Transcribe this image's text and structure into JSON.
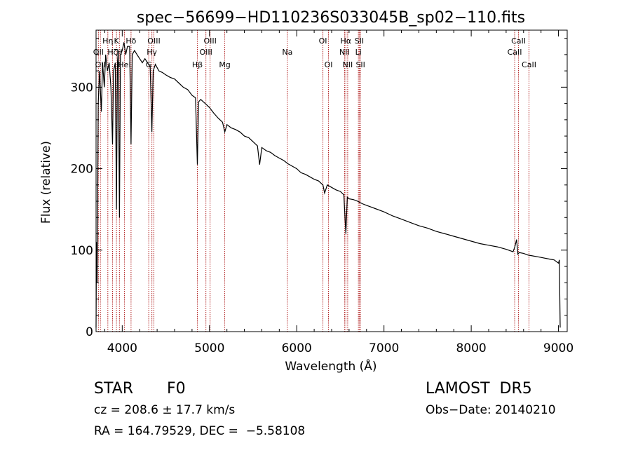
{
  "chart_data": {
    "type": "line",
    "title": "spec−56699−HD110236S033045B_sp02−110.fits",
    "xlabel": "Wavelength (Å)",
    "ylabel": "Flux (relative)",
    "xlim": [
      3700,
      9100
    ],
    "ylim": [
      0,
      370
    ],
    "x_ticks": [
      4000,
      5000,
      6000,
      7000,
      8000,
      9000
    ],
    "y_ticks": [
      0,
      100,
      200,
      300
    ],
    "grid": false,
    "series": [
      {
        "points": [
          [
            3700,
            5
          ],
          [
            3705,
            110
          ],
          [
            3712,
            60
          ],
          [
            3725,
            280
          ],
          [
            3740,
            320
          ],
          [
            3760,
            270
          ],
          [
            3775,
            330
          ],
          [
            3795,
            300
          ],
          [
            3810,
            340
          ],
          [
            3830,
            320
          ],
          [
            3850,
            330
          ],
          [
            3870,
            300
          ],
          [
            3889,
            230
          ],
          [
            3900,
            320
          ],
          [
            3920,
            330
          ],
          [
            3934,
            150
          ],
          [
            3945,
            330
          ],
          [
            3955,
            345
          ],
          [
            3968,
            140
          ],
          [
            3980,
            340
          ],
          [
            4000,
            345
          ],
          [
            4020,
            355
          ],
          [
            4040,
            340
          ],
          [
            4060,
            350
          ],
          [
            4085,
            350
          ],
          [
            4101,
            230
          ],
          [
            4115,
            340
          ],
          [
            4140,
            345
          ],
          [
            4170,
            340
          ],
          [
            4200,
            335
          ],
          [
            4230,
            330
          ],
          [
            4260,
            335
          ],
          [
            4290,
            330
          ],
          [
            4320,
            325
          ],
          [
            4340,
            245
          ],
          [
            4355,
            320
          ],
          [
            4380,
            328
          ],
          [
            4420,
            320
          ],
          [
            4460,
            318
          ],
          [
            4500,
            315
          ],
          [
            4550,
            312
          ],
          [
            4600,
            310
          ],
          [
            4650,
            305
          ],
          [
            4700,
            300
          ],
          [
            4750,
            297
          ],
          [
            4800,
            290
          ],
          [
            4840,
            287
          ],
          [
            4861,
            205
          ],
          [
            4875,
            282
          ],
          [
            4900,
            285
          ],
          [
            4950,
            280
          ],
          [
            5000,
            275
          ],
          [
            5050,
            268
          ],
          [
            5100,
            262
          ],
          [
            5150,
            257
          ],
          [
            5175,
            245
          ],
          [
            5200,
            254
          ],
          [
            5250,
            250
          ],
          [
            5300,
            248
          ],
          [
            5350,
            245
          ],
          [
            5400,
            240
          ],
          [
            5450,
            238
          ],
          [
            5500,
            233
          ],
          [
            5550,
            228
          ],
          [
            5575,
            205
          ],
          [
            5600,
            226
          ],
          [
            5650,
            222
          ],
          [
            5700,
            220
          ],
          [
            5750,
            216
          ],
          [
            5800,
            213
          ],
          [
            5850,
            210
          ],
          [
            5900,
            206
          ],
          [
            5950,
            203
          ],
          [
            6000,
            200
          ],
          [
            6050,
            195
          ],
          [
            6100,
            193
          ],
          [
            6150,
            190
          ],
          [
            6200,
            187
          ],
          [
            6250,
            185
          ],
          [
            6300,
            180
          ],
          [
            6320,
            170
          ],
          [
            6350,
            180
          ],
          [
            6400,
            177
          ],
          [
            6450,
            174
          ],
          [
            6500,
            172
          ],
          [
            6540,
            168
          ],
          [
            6563,
            120
          ],
          [
            6580,
            165
          ],
          [
            6600,
            163
          ],
          [
            6650,
            162
          ],
          [
            6700,
            160
          ],
          [
            6750,
            157
          ],
          [
            6800,
            155
          ],
          [
            6850,
            153
          ],
          [
            6900,
            151
          ],
          [
            6950,
            149
          ],
          [
            7000,
            147
          ],
          [
            7100,
            142
          ],
          [
            7200,
            138
          ],
          [
            7300,
            134
          ],
          [
            7400,
            130
          ],
          [
            7500,
            127
          ],
          [
            7600,
            123
          ],
          [
            7700,
            120
          ],
          [
            7800,
            117
          ],
          [
            7900,
            114
          ],
          [
            8000,
            111
          ],
          [
            8100,
            108
          ],
          [
            8200,
            106
          ],
          [
            8300,
            104
          ],
          [
            8400,
            101
          ],
          [
            8480,
            98
          ],
          [
            8500,
            104
          ],
          [
            8520,
            113
          ],
          [
            8535,
            95
          ],
          [
            8550,
            97
          ],
          [
            8600,
            96
          ],
          [
            8650,
            94
          ],
          [
            8700,
            93
          ],
          [
            8800,
            91
          ],
          [
            8900,
            89
          ],
          [
            8950,
            88
          ],
          [
            9000,
            84
          ],
          [
            9010,
            88
          ],
          [
            9020,
            5
          ]
        ]
      }
    ],
    "lines": [
      {
        "x": 3727,
        "label": "OII",
        "row": 2
      },
      {
        "x": 3750,
        "label": "OII",
        "row": 3
      },
      {
        "x": 3835,
        "label": "Hη",
        "row": 1
      },
      {
        "x": 3889,
        "label": "Hζ",
        "row": 2
      },
      {
        "x": 3934,
        "label": "K",
        "row": 1
      },
      {
        "x": 3968,
        "label": "H",
        "row": 2
      },
      {
        "x": 4026,
        "label": "HeI",
        "row": 3
      },
      {
        "x": 4101,
        "label": "Hδ",
        "row": 1
      },
      {
        "x": 4304,
        "label": "G",
        "row": 3
      },
      {
        "x": 4340,
        "label": "Hγ",
        "row": 2
      },
      {
        "x": 4363,
        "label": "OIII",
        "row": 1
      },
      {
        "x": 4861,
        "label": "Hβ",
        "row": 3
      },
      {
        "x": 4959,
        "label": "OIII",
        "row": 2
      },
      {
        "x": 5007,
        "label": "OIII",
        "row": 1
      },
      {
        "x": 5175,
        "label": "Mg",
        "row": 3
      },
      {
        "x": 5893,
        "label": "Na",
        "row": 2
      },
      {
        "x": 6300,
        "label": "OI",
        "row": 1
      },
      {
        "x": 6364,
        "label": "OI",
        "row": 3
      },
      {
        "x": 6548,
        "label": "NII",
        "row": 2
      },
      {
        "x": 6563,
        "label": "Hα",
        "row": 1
      },
      {
        "x": 6584,
        "label": "NII",
        "row": 3
      },
      {
        "x": 6707,
        "label": "Li",
        "row": 2
      },
      {
        "x": 6717,
        "label": "SII",
        "row": 1
      },
      {
        "x": 6731,
        "label": "SII",
        "row": 3
      },
      {
        "x": 8498,
        "label": "CaII",
        "row": 2
      },
      {
        "x": 8542,
        "label": "CaII",
        "row": 1
      },
      {
        "x": 8662,
        "label": "CaII",
        "row": 3
      }
    ],
    "line_color": "#b22222",
    "spectrum_color": "#000000"
  },
  "info": {
    "class_label": "STAR",
    "subclass": "F0",
    "survey": "LAMOST  DR5",
    "cz": "cz = 208.6 ± 17.7 km/s",
    "obs_date": "Obs−Date: 20140210",
    "radec": "RA = 164.79529, DEC =  −5.58108"
  }
}
